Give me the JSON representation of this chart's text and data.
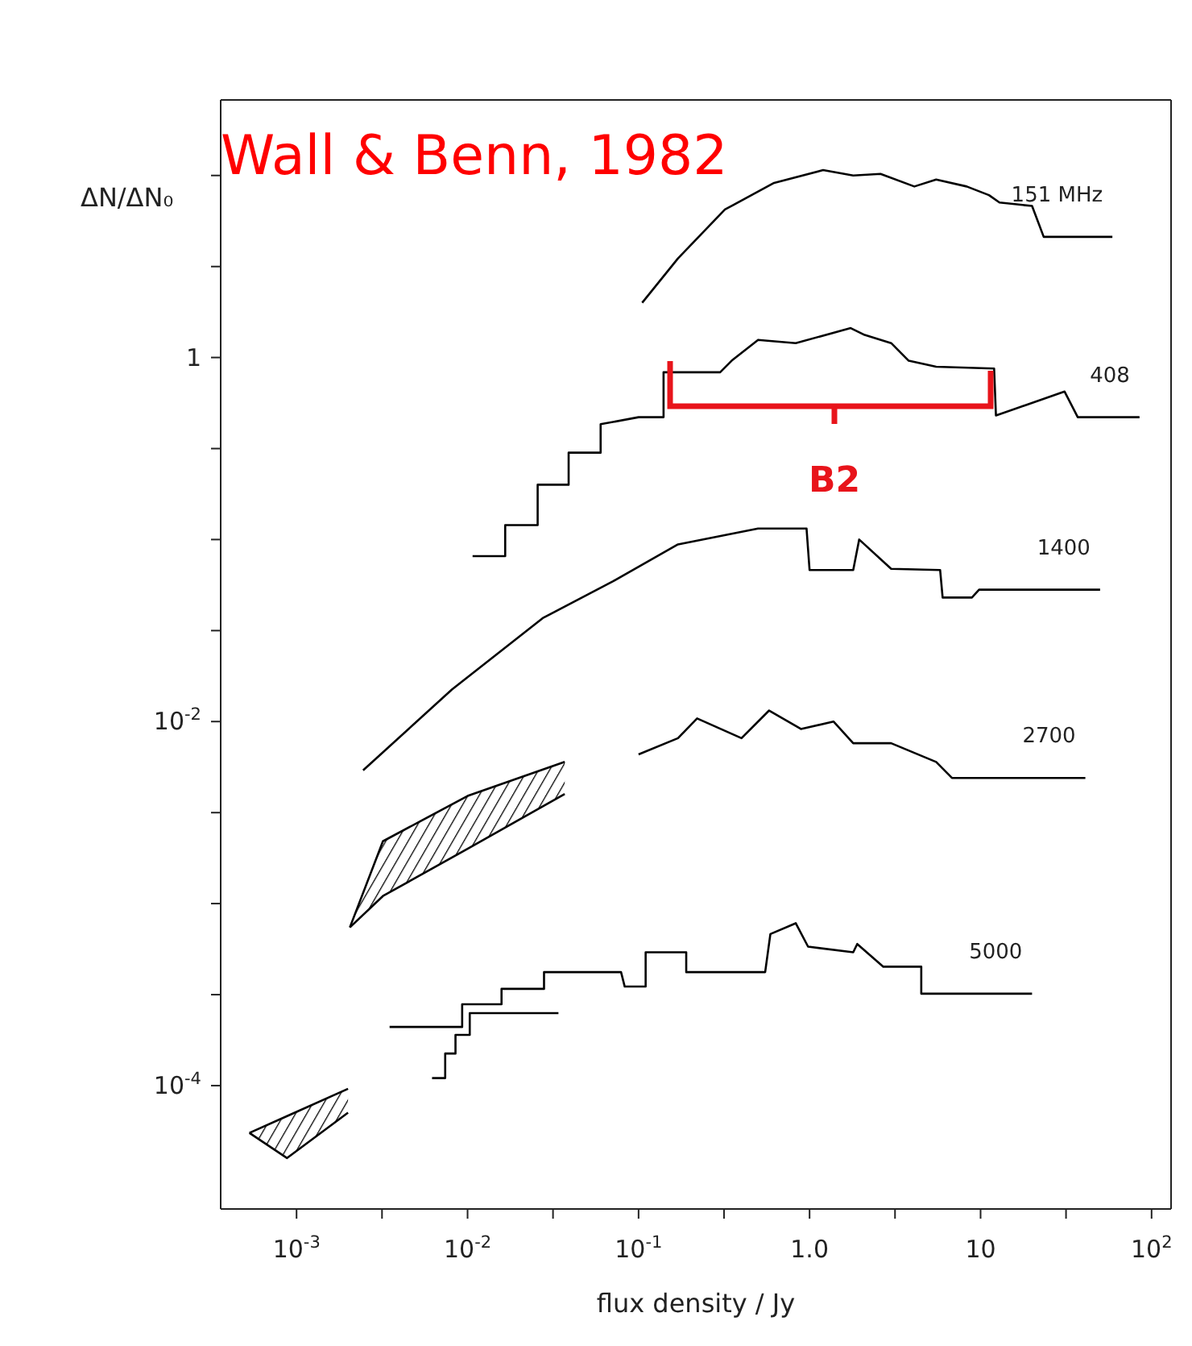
{
  "chart_data": {
    "type": "line",
    "xlabel": "flux density / Jy",
    "ylabel": "ΔN/ΔN₀",
    "log": "xy",
    "xlim": [
      0.00036,
      130
    ],
    "ylim": [
      2.1e-05,
      26
    ],
    "xticks": [
      {
        "value": 0.001,
        "label": "10$^{-3}$"
      },
      {
        "value": 0.00316,
        "label": null
      },
      {
        "value": 0.01,
        "label": "10$^{-2}$"
      },
      {
        "value": 0.0316,
        "label": null
      },
      {
        "value": 0.1,
        "label": "10$^{-1}$"
      },
      {
        "value": 0.316,
        "label": null
      },
      {
        "value": 1,
        "label": "1.0"
      },
      {
        "value": 3.16,
        "label": null
      },
      10,
      {
        "value": 31.6,
        "label": null
      },
      {
        "value": 100,
        "label": "10$^{2}$"
      }
    ],
    "yticks": [
      {
        "value": 0.0001,
        "label": "10$^{-4}$"
      },
      {
        "value": 0.000316,
        "label": null
      },
      {
        "value": 0.001,
        "label": null
      },
      {
        "value": 0.00316,
        "label": null
      },
      {
        "value": 0.01,
        "label": "10$^{-2}$"
      },
      {
        "value": 0.0316,
        "label": null
      },
      {
        "value": 0.1,
        "label": null
      },
      {
        "value": 0.316,
        "label": null
      },
      1,
      {
        "value": 3.16,
        "label": null
      },
      {
        "value": 10,
        "label": null
      }
    ],
    "annotations": [
      "Wall & Benn, 1982",
      "B2"
    ],
    "series": [
      {
        "name": "151 MHz",
        "color": "#000000",
        "x": [
          0.105,
          0.17,
          0.32,
          0.62,
          1.2,
          1.8,
          2.6,
          4.1,
          5.5,
          8.3,
          11.2,
          12.9,
          20,
          23.4,
          59
        ],
        "values": [
          2.0,
          3.5,
          6.5,
          9.1,
          10.7,
          10,
          10.2,
          8.7,
          9.5,
          8.7,
          7.8,
          7.1,
          6.8,
          4.6,
          4.6
        ]
      },
      {
        "name": "408",
        "color": "#000000",
        "x": [
          0.0107,
          0.0166,
          0.0166,
          0.0257,
          0.0257,
          0.039,
          0.039,
          0.06,
          0.06,
          0.1,
          0.14,
          0.14,
          0.21,
          0.3,
          0.35,
          0.5,
          0.83,
          1.74,
          2.1,
          3.0,
          3.8,
          5.5,
          12,
          12.3,
          18.6,
          31,
          37,
          85
        ],
        "values": [
          0.081,
          0.081,
          0.12,
          0.12,
          0.2,
          0.2,
          0.3,
          0.3,
          0.43,
          0.47,
          0.47,
          0.83,
          0.83,
          0.83,
          0.96,
          1.25,
          1.2,
          1.45,
          1.33,
          1.2,
          0.96,
          0.89,
          0.87,
          0.48,
          0.55,
          0.65,
          0.47,
          0.47
        ]
      },
      {
        "name": "1400",
        "color": "#000000",
        "x": [
          0.00245,
          0.0081,
          0.0275,
          0.071,
          0.17,
          0.5,
          0.96,
          1.0,
          1.8,
          1.95,
          3.0,
          5.8,
          6.0,
          8.9,
          9.8,
          50
        ],
        "values": [
          0.0054,
          0.015,
          0.037,
          0.059,
          0.094,
          0.115,
          0.115,
          0.068,
          0.068,
          0.1,
          0.069,
          0.068,
          0.048,
          0.048,
          0.053,
          0.053
        ]
      },
      {
        "name": "2700",
        "color": "#000000",
        "x": [
          0.1,
          0.17,
          0.22,
          0.4,
          0.58,
          0.89,
          1.38,
          1.8,
          3.0,
          5.5,
          6.8,
          41
        ],
        "values": [
          0.0066,
          0.0081,
          0.0104,
          0.0081,
          0.0115,
          0.0091,
          0.01,
          0.0076,
          0.0076,
          0.006,
          0.0049,
          0.0049
        ]
      },
      {
        "name": "5000",
        "color": "#000000",
        "x": [
          0.0035,
          0.0093,
          0.0093,
          0.0158,
          0.0158,
          0.028,
          0.028,
          0.079,
          0.083,
          0.11,
          0.11,
          0.19,
          0.19,
          0.55,
          0.59,
          0.83,
          0.98,
          1.8,
          1.9,
          2.7,
          4.5,
          4.5,
          20
        ],
        "values": [
          0.00021,
          0.00021,
          0.00028,
          0.00028,
          0.00034,
          0.00034,
          0.00042,
          0.00042,
          0.00035,
          0.00035,
          0.00054,
          0.00054,
          0.00042,
          0.00042,
          0.00068,
          0.00078,
          0.00058,
          0.00054,
          0.0006,
          0.00045,
          0.00045,
          0.00032,
          0.00032
        ]
      },
      {
        "color": "#000000",
        "x": [
          0.0062,
          0.0074,
          0.0074,
          0.0085,
          0.0085,
          0.0103,
          0.0103,
          0.034
        ],
        "values": [
          0.00011,
          0.00011,
          0.00015,
          0.00015,
          0.00019,
          0.00019,
          0.00025,
          0.00025
        ]
      },
      {
        "color": "#000000",
        "x": [
          0.00205,
          0.0032,
          0.01,
          0.037
        ],
        "values": [
          0.00074,
          0.0022,
          0.0039,
          0.006
        ],
        "lower": [
          0.00074,
          0.0011,
          0.002,
          0.004
        ],
        "upper": [
          0.00074,
          0.0022,
          0.0039,
          0.006
        ]
      },
      {
        "color": "#000000",
        "x": [
          0.00205,
          0.0032,
          0.01,
          0.037
        ],
        "values": [
          0.00074,
          0.0011,
          0.002,
          0.004
        ]
      },
      {
        "color": "#000000",
        "x": [
          0.00053,
          0.00088,
          0.002
        ],
        "values": [
          5.5e-05,
          6.8e-05,
          9.6e-05
        ],
        "lower": [
          5.5e-05,
          4e-05,
          7.1e-05
        ],
        "upper": [
          5.5e-05,
          6.8e-05,
          9.6e-05
        ]
      },
      {
        "color": "#000000",
        "x": [
          0.00053,
          0.00088,
          0.002
        ],
        "values": [
          5.5e-05,
          4e-05,
          7.1e-05
        ]
      }
    ]
  }
}
